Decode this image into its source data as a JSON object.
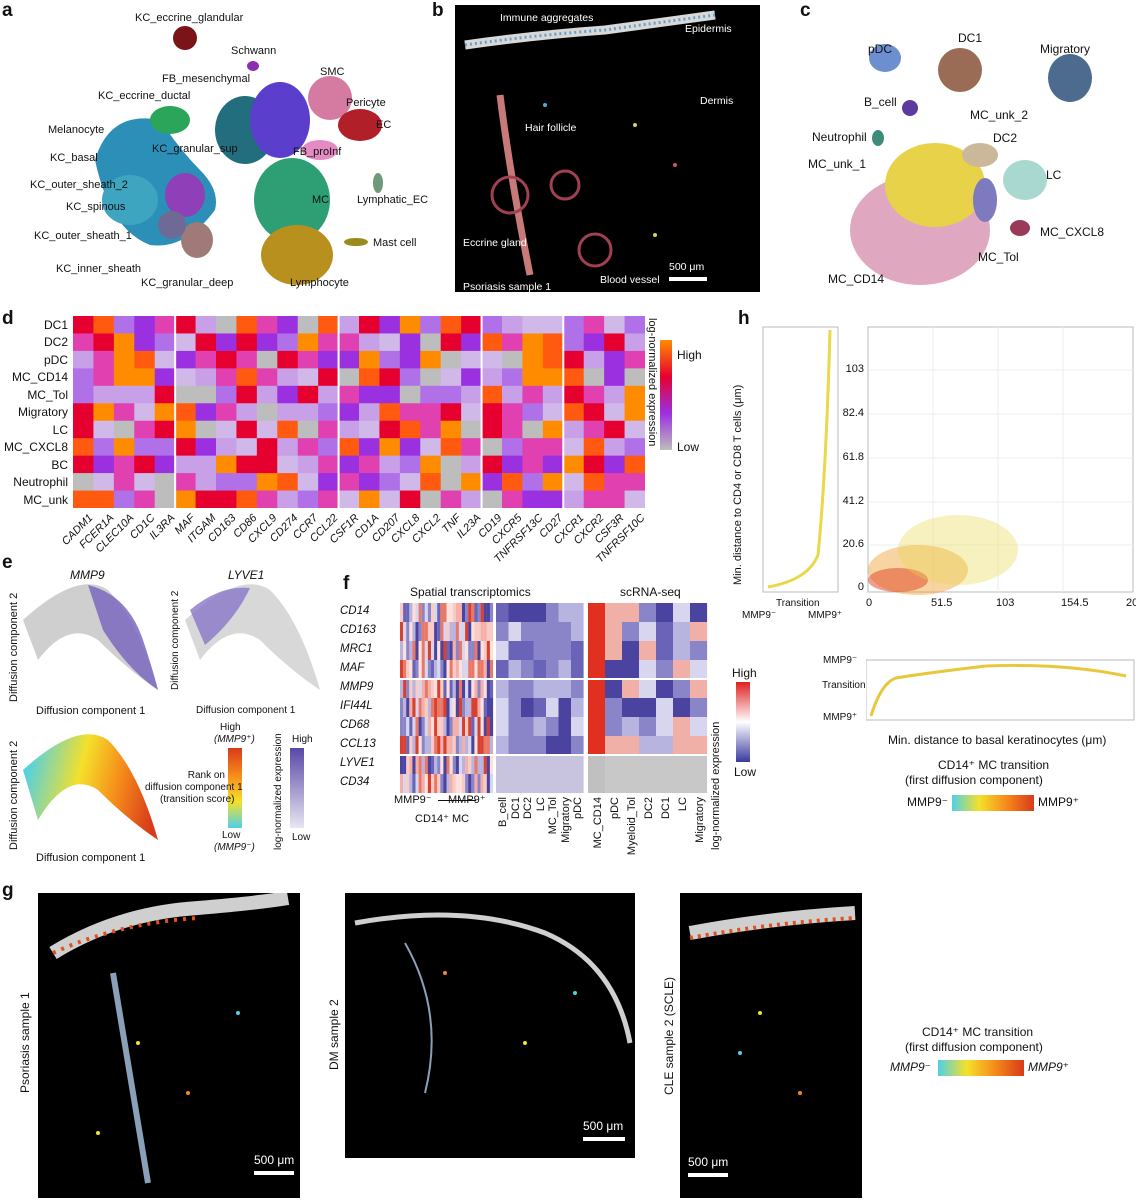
{
  "panels": {
    "a": {
      "letter": "a",
      "clusters": [
        "KC_eccrine_glandular",
        "Schwann",
        "SMC",
        "FB_mesenchymal",
        "KC_eccrine_ductal",
        "Pericyte",
        "EC",
        "Melanocyte",
        "FB_proInf",
        "KC_granular_sup",
        "KC_basal",
        "KC_outer_sheath_2",
        "MC",
        "Lymphatic_EC",
        "KC_spinous",
        "KC_outer_sheath_1",
        "Mast cell",
        "KC_inner_sheath",
        "KC_granular_deep",
        "Lymphocyte"
      ]
    },
    "b": {
      "letter": "b",
      "labels": {
        "immune": "Immune aggregates",
        "epidermis": "Epidermis",
        "dermis": "Dermis",
        "hair": "Hair follicle",
        "eccrine": "Eccrine gland",
        "blood": "Blood vessel",
        "sample": "Psoriasis sample 1",
        "scale": "500 μm"
      }
    },
    "c": {
      "letter": "c",
      "clusters": [
        "pDC",
        "DC1",
        "Migratory",
        "B_cell",
        "MC_unk_2",
        "Neutrophil",
        "DC2",
        "MC_unk_1",
        "LC",
        "MC_CXCL8",
        "MC_Tol",
        "MC_CD14"
      ]
    },
    "d": {
      "letter": "d",
      "rows": [
        "DC1",
        "DC2",
        "pDC",
        "MC_CD14",
        "MC_Tol",
        "Migratory",
        "LC",
        "MC_CXCL8",
        "BC",
        "Neutrophil",
        "MC_unk"
      ],
      "genes": [
        "CADM1",
        "FCER1A",
        "CLEC10A",
        "CD1C",
        "IL3RA",
        "MAF",
        "ITGAM",
        "CD163",
        "CD86",
        "CXCL9",
        "CD274",
        "CCR7",
        "CCL22",
        "CSF1R",
        "CD1A",
        "CD207",
        "CXCL8",
        "CXCL2",
        "TNF",
        "IL23A",
        "CD19",
        "CXCR5",
        "TNFRSF13C",
        "CD27",
        "CXCR1",
        "CXCR2",
        "CSF3R",
        "TNFRSF10C"
      ],
      "legend_title": "log-normalized expression",
      "high": "High",
      "low": "Low"
    },
    "e": {
      "letter": "e",
      "mmp9": "MMP9",
      "lyve1": "LYVE1",
      "xlabel": "Diffusion component 1",
      "ylabel": "Diffusion component 2",
      "rank_high": "High",
      "rank_high_sub": "(MMP9⁺)",
      "rank_title": [
        "Rank on",
        "diffusion component 1",
        "(transition score)"
      ],
      "rank_low": "Low",
      "rank_low_sub": "(MMP9⁻)",
      "expr_title": "log-normalized expression",
      "expr_high": "High",
      "expr_low": "Low"
    },
    "f": {
      "letter": "f",
      "st_title": "Spatial transcriptomics",
      "sc_title": "scRNA-seq",
      "genes": [
        "CD14",
        "CD163",
        "MRC1",
        "MAF",
        "MMP9",
        "IFI44L",
        "CD68",
        "CCL13",
        "LYVE1",
        "CD34"
      ],
      "st_cols": [
        "B_cell",
        "DC1",
        "DC2",
        "LC",
        "MC_Tol",
        "Migratory",
        "pDC"
      ],
      "sc_cols": [
        "MC_CD14",
        "pDC",
        "Myeloid_Tol",
        "DC2",
        "DC1",
        "LC",
        "Migratory"
      ],
      "axis_left": "MMP9⁻",
      "axis_right": "MMP9⁺",
      "axis_caption": "CD14⁺ MC",
      "legend_title": "log-normalized expression",
      "high": "High",
      "low": "Low"
    },
    "h": {
      "letter": "h",
      "ylabel": "Min. distance to CD4 or CD8 T cells (μm)",
      "yticks": [
        "103",
        "82.4",
        "61.8",
        "41.2",
        "20.6",
        "0"
      ],
      "xticks": [
        "0",
        "51.5",
        "103",
        "154.5",
        "206"
      ],
      "side_xl": "MMP9⁻",
      "side_xm": "Transition",
      "side_xr": "MMP9⁺",
      "bot_yt": "MMP9⁻",
      "bot_ym": "Transition",
      "bot_yb": "MMP9⁺",
      "xlabel": "Min. distance to basal keratinocytes (μm)",
      "cbar_title": [
        "CD14⁺ MC transition",
        "(first diffusion component)"
      ],
      "cbar_left": "MMP9⁻",
      "cbar_right": "MMP9⁺"
    },
    "g": {
      "letter": "g",
      "s1": "Psoriasis sample 1",
      "s2": "DM sample 2",
      "s3": "CLE sample 2 (SCLE)",
      "scale": "500 μm",
      "cbar_title": [
        "CD14⁺ MC transition",
        "(first diffusion component)"
      ],
      "cbar_left": "MMP9⁻",
      "cbar_right": "MMP9⁺"
    }
  }
}
